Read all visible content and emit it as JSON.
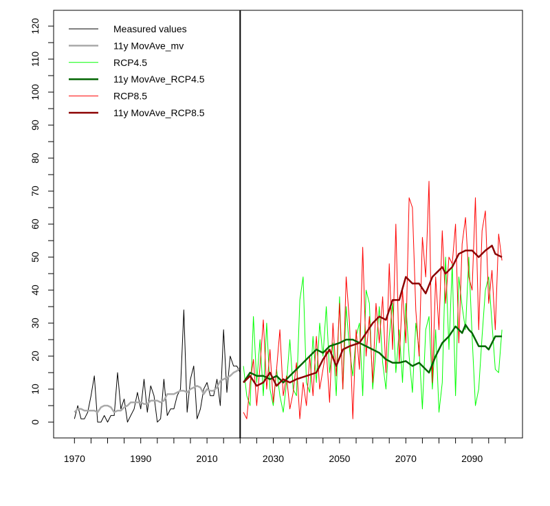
{
  "chart_data": {
    "type": "line",
    "title": "",
    "xlabel": "",
    "ylabel": "",
    "xlim": [
      1962,
      2104
    ],
    "ylim": [
      -5,
      125
    ],
    "x_ticks": [
      1970,
      1975,
      1980,
      1985,
      1990,
      1995,
      2000,
      2005,
      2010,
      2015,
      2020,
      2025,
      2030,
      2035,
      2040,
      2045,
      2050,
      2055,
      2060,
      2065,
      2070,
      2075,
      2080,
      2085,
      2090,
      2095,
      2100
    ],
    "x_tick_labels": [
      "1970",
      "1990",
      "2010",
      "2030",
      "2050",
      "2070",
      "2090"
    ],
    "y_ticks": [
      0,
      5,
      10,
      15,
      20,
      25,
      30,
      35,
      40,
      45,
      50,
      55,
      60,
      65,
      70,
      75,
      80,
      85,
      90,
      95,
      100,
      105,
      110,
      115,
      120
    ],
    "y_tick_labels": [
      "0",
      "10",
      "20",
      "30",
      "40",
      "50",
      "60",
      "70",
      "80",
      "90",
      "100",
      "110",
      "120"
    ],
    "vertical_marker_year": 2020,
    "legend_position": "top-left",
    "series": [
      {
        "name": "Measured values",
        "color": "#000000",
        "width": 1,
        "start": 1970,
        "values": [
          1,
          5,
          1,
          1,
          3,
          8,
          14,
          0,
          0,
          2,
          0,
          2,
          2,
          15,
          4,
          7,
          0,
          2,
          4,
          9,
          4,
          13,
          3,
          11,
          8,
          0,
          1,
          13,
          2,
          4,
          4,
          8,
          10,
          34,
          3,
          13,
          17,
          1,
          4,
          10,
          12,
          8,
          8,
          13,
          5,
          28,
          9,
          20,
          17,
          17,
          15
        ]
      },
      {
        "name": "11y MovAve_mv",
        "color": "#A9A9A9",
        "width": 2.5,
        "start": 1970,
        "values": [
          3,
          4,
          4,
          3.5,
          3.5,
          3.5,
          3.5,
          3,
          4.5,
          5,
          5,
          4.5,
          3,
          3.5,
          3.5,
          4.5,
          5,
          6,
          6,
          6,
          6,
          5.5,
          5.5,
          6.5,
          6.5,
          6.5,
          6,
          6.5,
          8.5,
          8.5,
          8.5,
          9,
          9.5,
          9.5,
          9,
          10,
          10.5,
          11,
          10.5,
          8.5,
          10,
          9.5,
          9.5,
          10.5,
          12.5,
          13,
          13.5,
          14,
          15,
          15.5,
          16.5
        ]
      },
      {
        "name": "RCP4.5",
        "color": "#00FF00",
        "width": 1,
        "start": 2021,
        "values": [
          17,
          8,
          5,
          32,
          12,
          25,
          8,
          30,
          10,
          5,
          16,
          8,
          3,
          12,
          25,
          10,
          8,
          37,
          44,
          12,
          9,
          26,
          12,
          30,
          20,
          35,
          15,
          24,
          8,
          38,
          10,
          35,
          22,
          14,
          26,
          30,
          8,
          40,
          36,
          10,
          22,
          35,
          18,
          10,
          26,
          36,
          15,
          28,
          12,
          36,
          20,
          9,
          30,
          22,
          4,
          28,
          32,
          10,
          28,
          3,
          12,
          50,
          22,
          48,
          8,
          44,
          35,
          28,
          50,
          26,
          5,
          10,
          26,
          40,
          44,
          30,
          16,
          15,
          28
        ]
      },
      {
        "name": "11y MovAve_RCP4.5",
        "color": "#006400",
        "width": 2.5,
        "x": [
          2021,
          2023,
          2025,
          2027,
          2029,
          2031,
          2033,
          2035,
          2037,
          2039,
          2041,
          2043,
          2045,
          2047,
          2050,
          2052,
          2054,
          2056,
          2058,
          2060,
          2062,
          2064,
          2066,
          2068,
          2070,
          2072,
          2074,
          2076,
          2077,
          2079,
          2081,
          2083,
          2085,
          2087,
          2088,
          2089,
          2090,
          2092,
          2094,
          2095,
          2097,
          2099
        ],
        "values": [
          12,
          15,
          14,
          14,
          13,
          14,
          12,
          14,
          16,
          18,
          20,
          22,
          21,
          23,
          24,
          25,
          25,
          24,
          23,
          22,
          21,
          19,
          18,
          18,
          18.5,
          17,
          18,
          16,
          15,
          20,
          24,
          26,
          29,
          27,
          29.5,
          28,
          27,
          23,
          23,
          22,
          26,
          26
        ]
      },
      {
        "name": "RCP8.5",
        "color": "#FF0000",
        "width": 1,
        "start": 2021,
        "values": [
          3,
          1,
          12,
          19,
          5,
          17,
          31,
          10,
          22,
          6,
          16,
          28,
          8,
          14,
          4,
          9,
          18,
          1,
          12,
          5,
          20,
          8,
          26,
          10,
          16,
          22,
          6,
          30,
          14,
          36,
          10,
          44,
          30,
          1,
          28,
          16,
          53,
          20,
          32,
          12,
          36,
          24,
          38,
          15,
          48,
          22,
          60,
          18,
          40,
          24,
          68,
          65,
          34,
          20,
          56,
          44,
          73,
          12,
          44,
          28,
          58,
          36,
          50,
          48,
          60,
          24,
          54,
          62,
          44,
          40,
          68,
          28,
          58,
          64,
          36,
          46,
          28,
          57,
          49
        ]
      },
      {
        "name": "11y MovAve_RCP8.5",
        "color": "#8B0000",
        "width": 2.5,
        "x": [
          2021,
          2023,
          2025,
          2027,
          2029,
          2031,
          2033,
          2035,
          2037,
          2040,
          2043,
          2045,
          2047,
          2049,
          2051,
          2053,
          2056,
          2058,
          2060,
          2062,
          2064,
          2066,
          2068,
          2070,
          2072,
          2074,
          2076,
          2078,
          2080,
          2081,
          2082,
          2084,
          2086,
          2088,
          2090,
          2092,
          2094,
          2096,
          2097,
          2099
        ],
        "values": [
          12,
          14,
          11,
          12,
          15,
          11,
          13,
          12,
          13,
          14,
          15,
          19,
          22,
          17,
          22,
          23,
          24,
          27,
          30,
          32,
          31,
          37,
          37,
          44,
          42,
          42,
          39,
          44,
          46,
          47,
          45,
          47,
          51,
          52,
          52,
          50,
          52,
          53.5,
          51,
          50
        ]
      }
    ]
  }
}
